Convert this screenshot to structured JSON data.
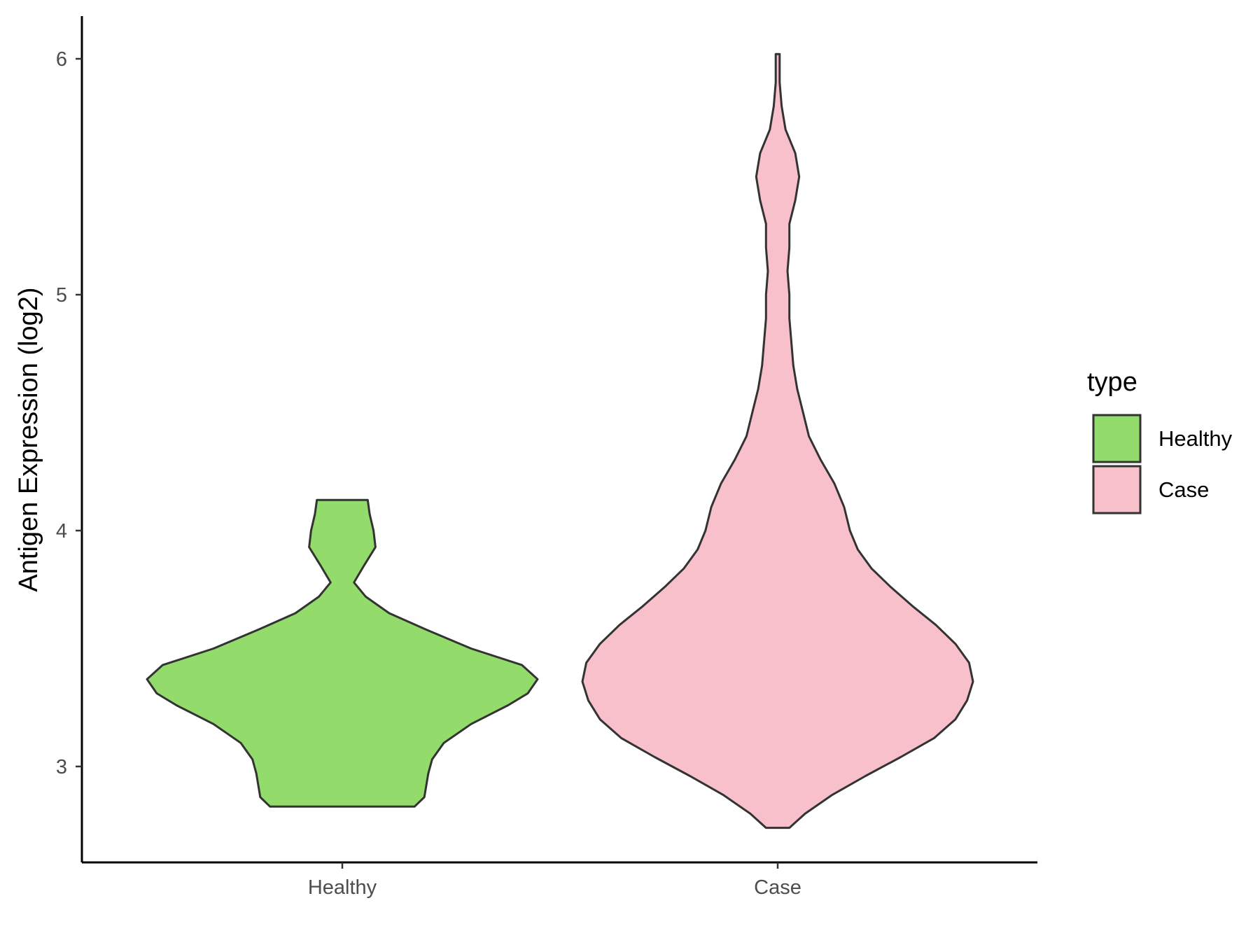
{
  "chart_data": {
    "type": "violin",
    "xlabel": "",
    "ylabel": "Antigen Expression (log2)",
    "ylim": [
      2.6,
      6.2
    ],
    "yticks": [
      "3",
      "4",
      "5",
      "6"
    ],
    "categories": [
      "Healthy",
      "Case"
    ],
    "grid": false,
    "legend": {
      "title": "type",
      "position": "right",
      "entries": [
        {
          "label": "Healthy",
          "color": "#93dc6b"
        },
        {
          "label": "Case",
          "color": "#f8c0cb"
        }
      ]
    },
    "series": [
      {
        "name": "Healthy",
        "color": "#93dc6b",
        "min": 2.83,
        "max": 4.13,
        "profile": [
          [
            2.83,
            0.37
          ],
          [
            2.87,
            0.42
          ],
          [
            2.92,
            0.43
          ],
          [
            2.97,
            0.44
          ],
          [
            3.03,
            0.46
          ],
          [
            3.1,
            0.52
          ],
          [
            3.18,
            0.66
          ],
          [
            3.26,
            0.85
          ],
          [
            3.31,
            0.95
          ],
          [
            3.37,
            1.0
          ],
          [
            3.43,
            0.92
          ],
          [
            3.5,
            0.66
          ],
          [
            3.58,
            0.43
          ],
          [
            3.65,
            0.24
          ],
          [
            3.72,
            0.12
          ],
          [
            3.78,
            0.06
          ],
          [
            3.85,
            0.11
          ],
          [
            3.93,
            0.17
          ],
          [
            4.0,
            0.16
          ],
          [
            4.07,
            0.14
          ],
          [
            4.13,
            0.13
          ]
        ]
      },
      {
        "name": "Case",
        "color": "#f8c0cb",
        "min": 2.74,
        "max": 6.02,
        "profile": [
          [
            2.74,
            0.06
          ],
          [
            2.8,
            0.14
          ],
          [
            2.88,
            0.28
          ],
          [
            2.96,
            0.45
          ],
          [
            3.04,
            0.63
          ],
          [
            3.12,
            0.8
          ],
          [
            3.2,
            0.91
          ],
          [
            3.28,
            0.97
          ],
          [
            3.36,
            1.0
          ],
          [
            3.44,
            0.98
          ],
          [
            3.52,
            0.91
          ],
          [
            3.6,
            0.81
          ],
          [
            3.68,
            0.69
          ],
          [
            3.76,
            0.58
          ],
          [
            3.84,
            0.48
          ],
          [
            3.92,
            0.41
          ],
          [
            4.0,
            0.37
          ],
          [
            4.1,
            0.34
          ],
          [
            4.2,
            0.29
          ],
          [
            4.3,
            0.22
          ],
          [
            4.4,
            0.16
          ],
          [
            4.5,
            0.13
          ],
          [
            4.6,
            0.1
          ],
          [
            4.7,
            0.08
          ],
          [
            4.8,
            0.07
          ],
          [
            4.9,
            0.06
          ],
          [
            5.0,
            0.06
          ],
          [
            5.1,
            0.05
          ],
          [
            5.2,
            0.06
          ],
          [
            5.3,
            0.06
          ],
          [
            5.4,
            0.09
          ],
          [
            5.5,
            0.11
          ],
          [
            5.6,
            0.09
          ],
          [
            5.7,
            0.04
          ],
          [
            5.8,
            0.02
          ],
          [
            5.9,
            0.01
          ],
          [
            6.02,
            0.01
          ]
        ]
      }
    ]
  }
}
